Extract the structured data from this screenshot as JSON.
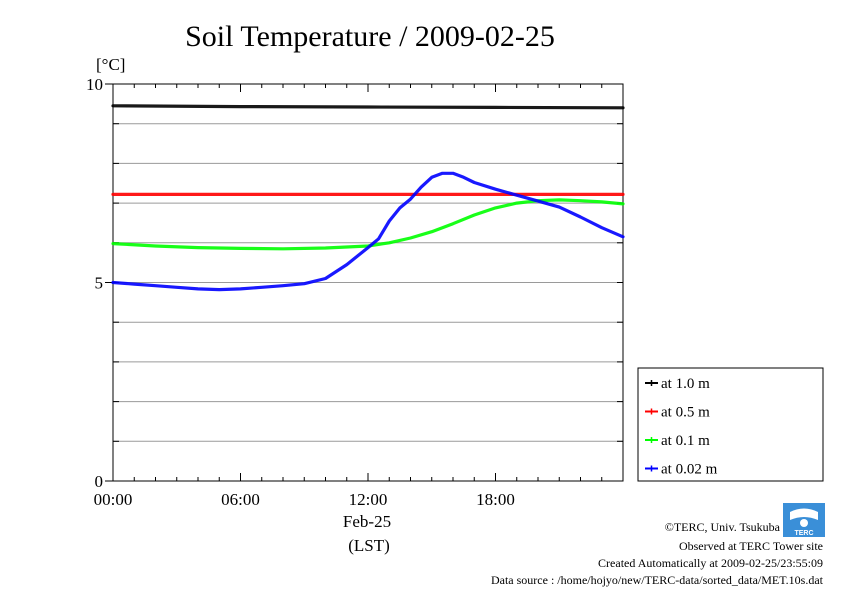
{
  "chart_data": {
    "type": "line",
    "title": "Soil Temperature / 2009-02-25",
    "ylabel": "[°C]",
    "ylim": [
      0,
      10
    ],
    "yticks": [
      0,
      5,
      10
    ],
    "y_tick_labels": [
      "0",
      "5",
      "10"
    ],
    "xlim": [
      0,
      24
    ],
    "xticks": [
      0,
      6,
      12,
      18
    ],
    "x_tick_labels": [
      "00:00",
      "06:00",
      "12:00",
      "18:00"
    ],
    "xlabel_date": "Feb-25",
    "xlabel": "(LST)",
    "grid": true,
    "legend_position": "right",
    "series": [
      {
        "name": "at 1.0 m",
        "color": "#000000",
        "x": [
          0,
          6,
          12,
          18,
          24
        ],
        "y": [
          9.45,
          9.43,
          9.42,
          9.41,
          9.4
        ]
      },
      {
        "name": "at 0.5 m",
        "color": "#ff0000",
        "x": [
          0,
          6,
          12,
          18,
          24
        ],
        "y": [
          7.22,
          7.22,
          7.22,
          7.22,
          7.22
        ]
      },
      {
        "name": "at 0.1 m",
        "color": "#00ff00",
        "x": [
          0,
          2,
          4,
          6,
          8,
          10,
          12,
          13,
          14,
          15,
          16,
          17,
          18,
          19,
          20,
          21,
          22,
          23,
          24
        ],
        "y": [
          5.98,
          5.92,
          5.88,
          5.86,
          5.85,
          5.87,
          5.92,
          6.0,
          6.12,
          6.28,
          6.48,
          6.7,
          6.88,
          7.0,
          7.06,
          7.08,
          7.06,
          7.03,
          6.98
        ]
      },
      {
        "name": "at 0.02 m",
        "color": "#0000ff",
        "x": [
          0,
          1,
          2,
          3,
          4,
          5,
          6,
          7,
          8,
          9,
          10,
          11,
          12,
          12.5,
          13,
          13.5,
          14,
          14.5,
          15,
          15.5,
          16,
          16.5,
          17,
          18,
          19,
          20,
          21,
          22,
          23,
          24
        ],
        "y": [
          5.0,
          4.96,
          4.92,
          4.88,
          4.84,
          4.82,
          4.84,
          4.88,
          4.92,
          4.97,
          5.1,
          5.45,
          5.88,
          6.1,
          6.55,
          6.88,
          7.1,
          7.4,
          7.65,
          7.75,
          7.75,
          7.65,
          7.52,
          7.35,
          7.2,
          7.05,
          6.9,
          6.65,
          6.38,
          6.15
        ]
      }
    ]
  },
  "credits": {
    "copyright": "©TERC, Univ. Tsukuba",
    "observed": "Observed at TERC Tower site",
    "created": "Created Automatically at 2009-02-25/23:55:09",
    "source": "Data source : /home/hojyo/new/TERC-data/sorted_data/MET.10s.dat",
    "logo_text": "TERC"
  }
}
